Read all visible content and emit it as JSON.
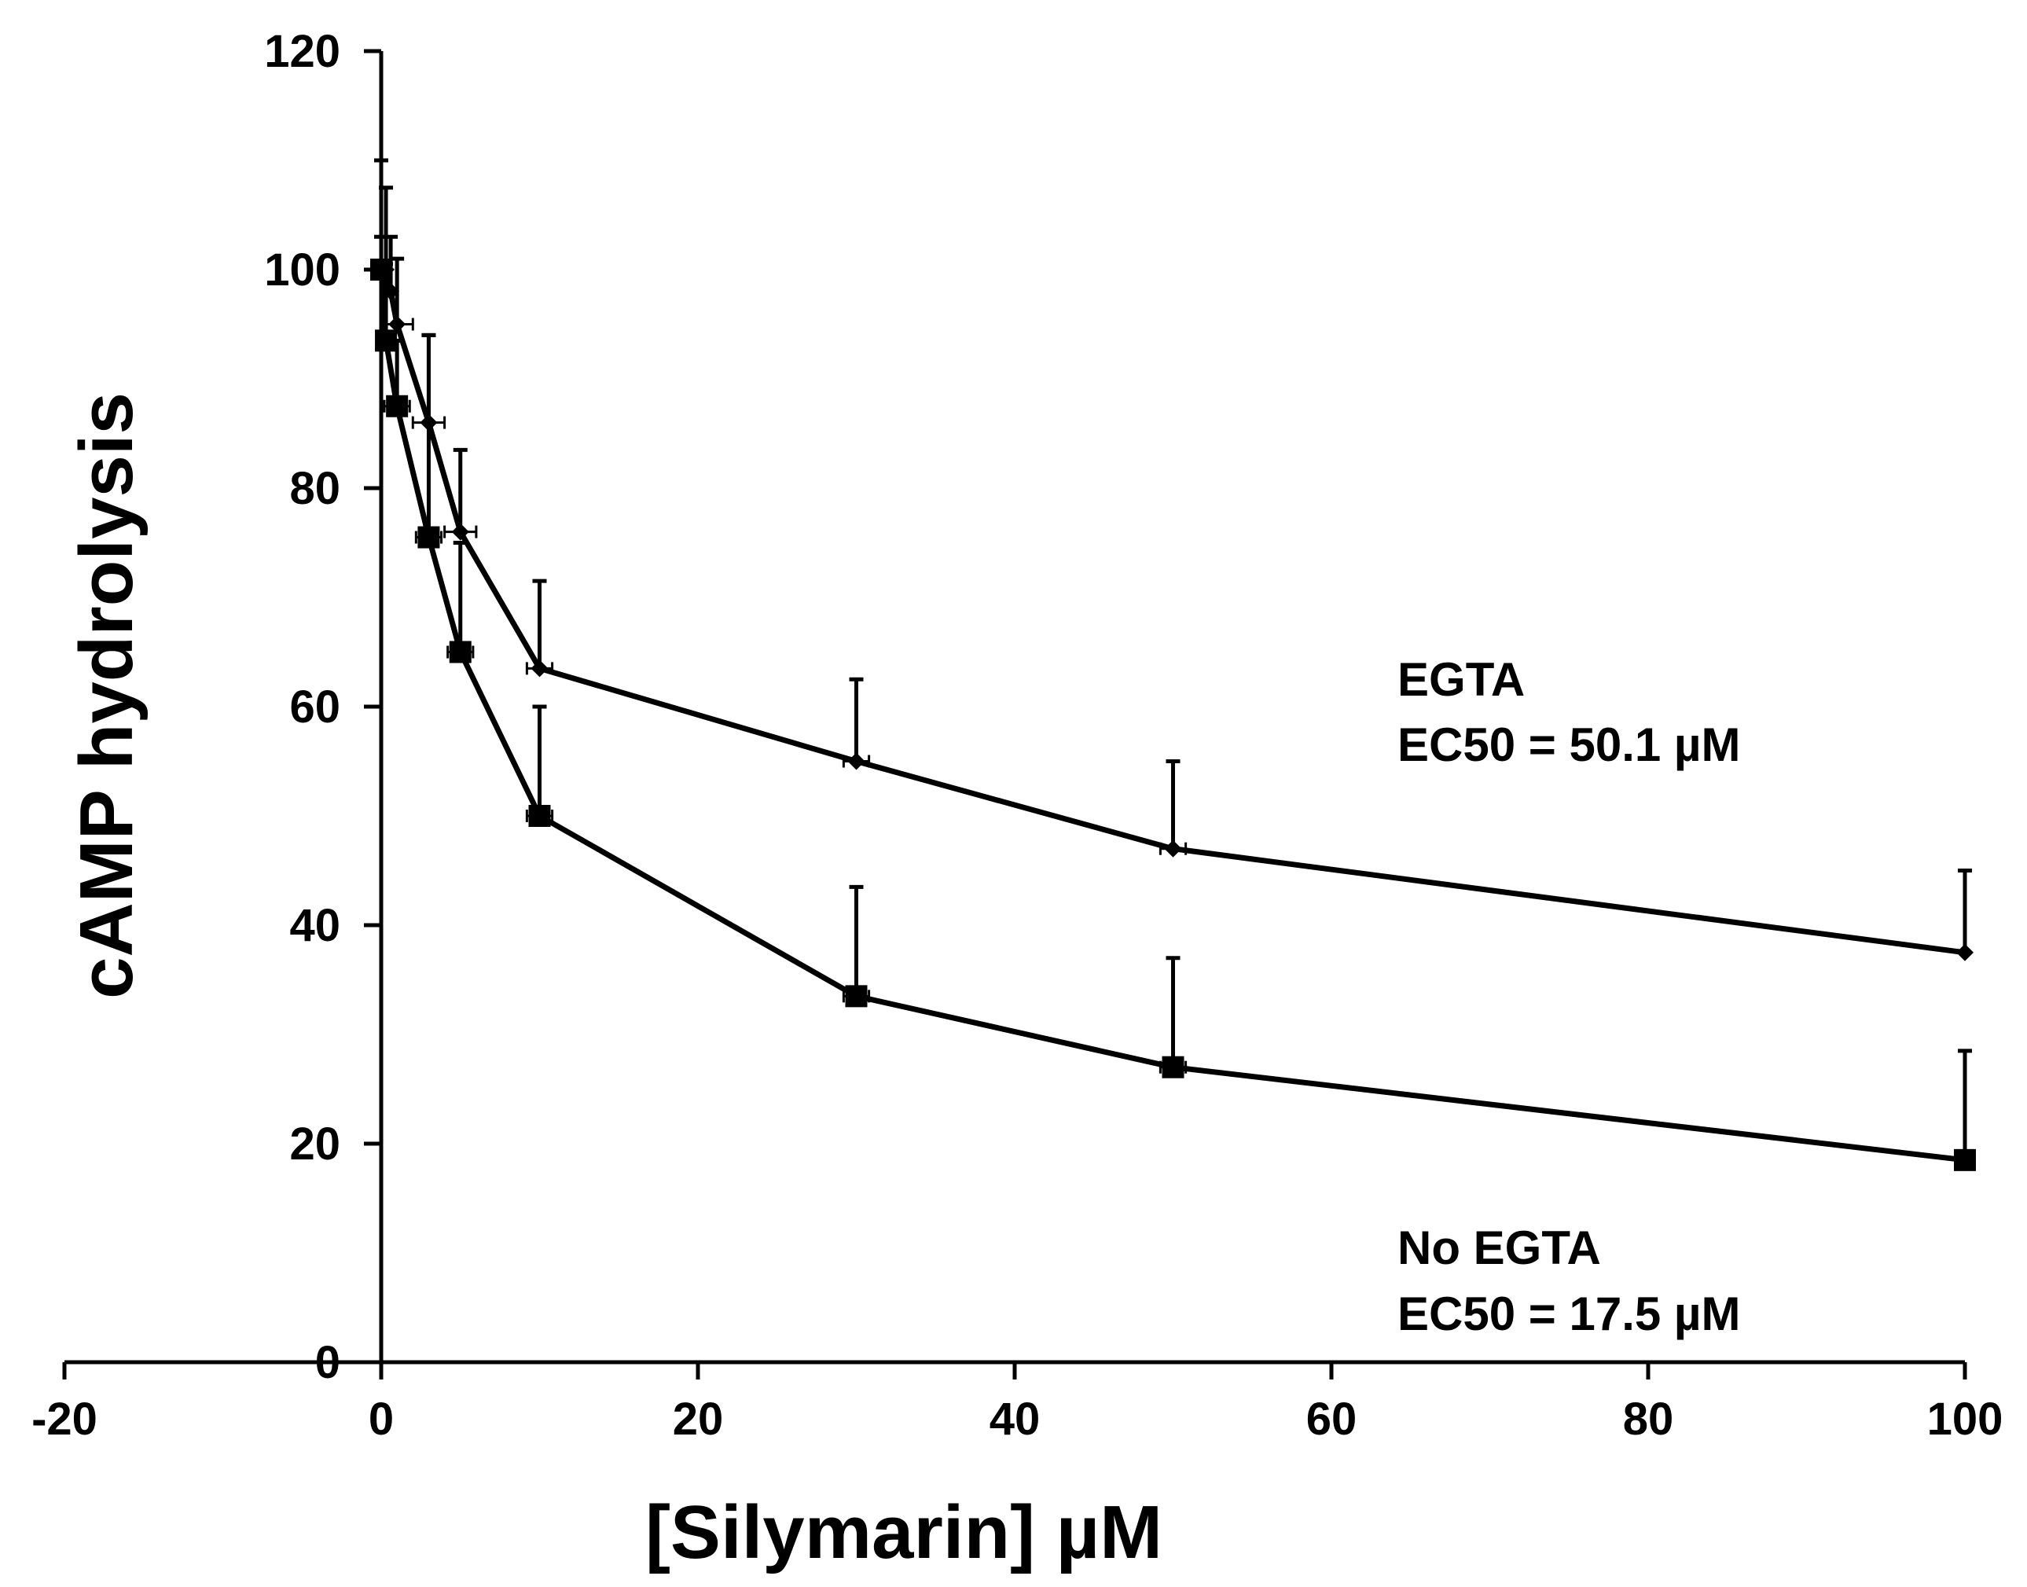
{
  "chart_data": {
    "type": "line",
    "title": "",
    "xlabel": "[Silymarin] µM",
    "ylabel": "cAMP hydrolysis",
    "xlim": [
      -20,
      100
    ],
    "ylim": [
      0,
      120
    ],
    "x_ticks": [
      -20,
      0,
      20,
      40,
      60,
      80,
      100
    ],
    "y_ticks": [
      0,
      20,
      40,
      60,
      80,
      100,
      120
    ],
    "grid": false,
    "legend": "none",
    "series": [
      {
        "name": "EGTA",
        "marker": "diamond",
        "points": [
          {
            "x": 0,
            "y": 100,
            "err_up": 10,
            "xerr": 0
          },
          {
            "x": 0.3,
            "y": 100,
            "err_up": 7.5,
            "xerr": 0
          },
          {
            "x": 0.6,
            "y": 98,
            "err_up": 5,
            "xerr": 0
          },
          {
            "x": 1,
            "y": 95,
            "err_up": 6,
            "xerr": 1
          },
          {
            "x": 3,
            "y": 86,
            "err_up": 8,
            "xerr": 1
          },
          {
            "x": 5,
            "y": 76,
            "err_up": 7.5,
            "xerr": 1
          },
          {
            "x": 10,
            "y": 63.5,
            "err_up": 8,
            "xerr": 0.8
          },
          {
            "x": 30,
            "y": 55,
            "err_up": 7.5,
            "xerr": 0.8
          },
          {
            "x": 50,
            "y": 47,
            "err_up": 8,
            "xerr": 0.8
          },
          {
            "x": 100,
            "y": 37.5,
            "err_up": 7.5,
            "xerr": 0
          }
        ]
      },
      {
        "name": "No EGTA",
        "marker": "square",
        "points": [
          {
            "x": 0,
            "y": 100,
            "err_up": 3,
            "xerr": 0
          },
          {
            "x": 0.3,
            "y": 93.5,
            "err_up": 7,
            "xerr": 0
          },
          {
            "x": 1,
            "y": 87.5,
            "err_up": 6,
            "xerr": 0.8
          },
          {
            "x": 3,
            "y": 75.5,
            "err_up": 18.5,
            "xerr": 0.8
          },
          {
            "x": 5,
            "y": 65,
            "err_up": 10,
            "xerr": 0.8
          },
          {
            "x": 10,
            "y": 50,
            "err_up": 10,
            "xerr": 0.8
          },
          {
            "x": 30,
            "y": 33.5,
            "err_up": 10,
            "xerr": 0.8
          },
          {
            "x": 50,
            "y": 27,
            "err_up": 10,
            "xerr": 0.8
          },
          {
            "x": 100,
            "y": 18.5,
            "err_up": 10,
            "xerr": 0
          }
        ]
      }
    ],
    "annotations": [
      {
        "label": "EGTA",
        "sublabel": "EC50 = 50.1 µM",
        "series": "EGTA"
      },
      {
        "label": "No EGTA",
        "sublabel": "EC50 = 17.5 µM",
        "series": "No EGTA"
      }
    ]
  }
}
